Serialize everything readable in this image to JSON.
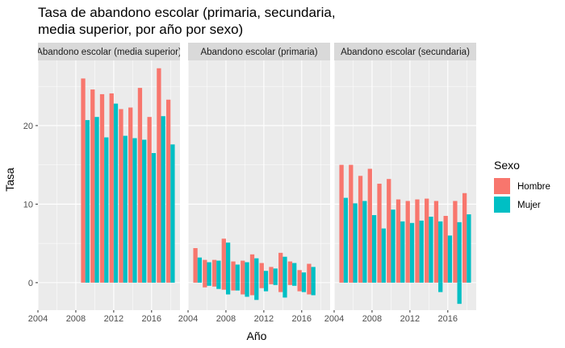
{
  "chart_data": {
    "type": "bar",
    "title_line1": "Tasa de abandono escolar (primaria, secundaria,",
    "title_line2": "media superior, por año por sexo)",
    "xlabel": "Año",
    "ylabel": "Tasa",
    "xlim": [
      2004,
      2019
    ],
    "ylim": [
      -3.5,
      28.3
    ],
    "x_ticks": [
      "2004",
      "2008",
      "2012",
      "2016"
    ],
    "y_ticks": [
      "0",
      "10",
      "20"
    ],
    "legend": {
      "title": "Sexo",
      "position": "right"
    },
    "colors": {
      "Hombre": "#F8766D",
      "Mujer": "#00BFC4"
    },
    "panels": [
      {
        "strip": "Abandono escolar (media superior)",
        "series": [
          {
            "name": "Hombre",
            "x": [
              2009,
              2010,
              2011,
              2012,
              2013,
              2014,
              2015,
              2016,
              2017,
              2018
            ],
            "values": [
              26.0,
              24.6,
              24.0,
              24.1,
              22.1,
              22.3,
              24.8,
              21.1,
              27.3,
              23.3
            ]
          },
          {
            "name": "Mujer",
            "x": [
              2009,
              2010,
              2011,
              2012,
              2013,
              2014,
              2015,
              2016,
              2017,
              2018
            ],
            "values": [
              20.7,
              21.1,
              18.5,
              22.8,
              18.7,
              18.4,
              18.2,
              16.5,
              21.2,
              17.6
            ]
          }
        ]
      },
      {
        "strip": "Abandono escolar (primaria)",
        "series": [
          {
            "name": "Hombre",
            "x": [
              2005,
              2006,
              2007,
              2008,
              2009,
              2010,
              2011,
              2012,
              2013,
              2014,
              2015,
              2016,
              2017
            ],
            "values": [
              4.4,
              2.9,
              2.9,
              5.6,
              2.7,
              2.8,
              3.6,
              2.5,
              2.0,
              3.8,
              2.7,
              1.6,
              2.4
            ]
          },
          {
            "name": "Mujer",
            "x": [
              2005,
              2006,
              2007,
              2008,
              2009,
              2010,
              2011,
              2012,
              2013,
              2014,
              2015,
              2016,
              2017
            ],
            "values": [
              3.2,
              2.6,
              2.8,
              5.1,
              2.3,
              2.6,
              3.1,
              1.5,
              1.8,
              3.3,
              2.5,
              1.3,
              2.0
            ]
          },
          {
            "name": "Hombre",
            "x": [
              2006,
              2007,
              2008,
              2009,
              2010,
              2011,
              2012,
              2013,
              2014,
              2015,
              2016,
              2017
            ],
            "values": [
              -0.6,
              -0.5,
              -0.9,
              -1.0,
              -1.5,
              -1.6,
              -0.7,
              -0.2,
              -1.2,
              -0.3,
              -1.1,
              -1.5
            ]
          },
          {
            "name": "Mujer",
            "x": [
              2006,
              2007,
              2008,
              2009,
              2010,
              2011,
              2012,
              2013,
              2014,
              2015,
              2016,
              2017
            ],
            "values": [
              -0.4,
              -0.8,
              -1.5,
              -1.0,
              -1.8,
              -2.2,
              -1.1,
              -0.3,
              -1.9,
              -0.4,
              -1.2,
              -1.6
            ]
          }
        ]
      },
      {
        "strip": "Abandono escolar (secundaria)",
        "series": [
          {
            "name": "Hombre",
            "x": [
              2005,
              2006,
              2007,
              2008,
              2009,
              2010,
              2011,
              2012,
              2013,
              2014,
              2015,
              2016,
              2017,
              2018
            ],
            "values": [
              15.0,
              15.0,
              13.6,
              14.5,
              12.6,
              13.2,
              10.6,
              10.4,
              10.6,
              10.7,
              10.4,
              8.5,
              10.4,
              11.4
            ]
          },
          {
            "name": "Mujer",
            "x": [
              2005,
              2006,
              2007,
              2008,
              2009,
              2010,
              2011,
              2012,
              2013,
              2014,
              2015,
              2016,
              2017,
              2018
            ],
            "values": [
              10.8,
              10.1,
              10.4,
              8.6,
              6.9,
              9.3,
              7.8,
              7.6,
              7.9,
              8.4,
              7.8,
              6.0,
              7.7,
              8.7
            ]
          },
          {
            "name": "Mujer",
            "x": [
              2015,
              2017
            ],
            "values": [
              -1.2,
              -2.7
            ]
          }
        ]
      }
    ]
  }
}
